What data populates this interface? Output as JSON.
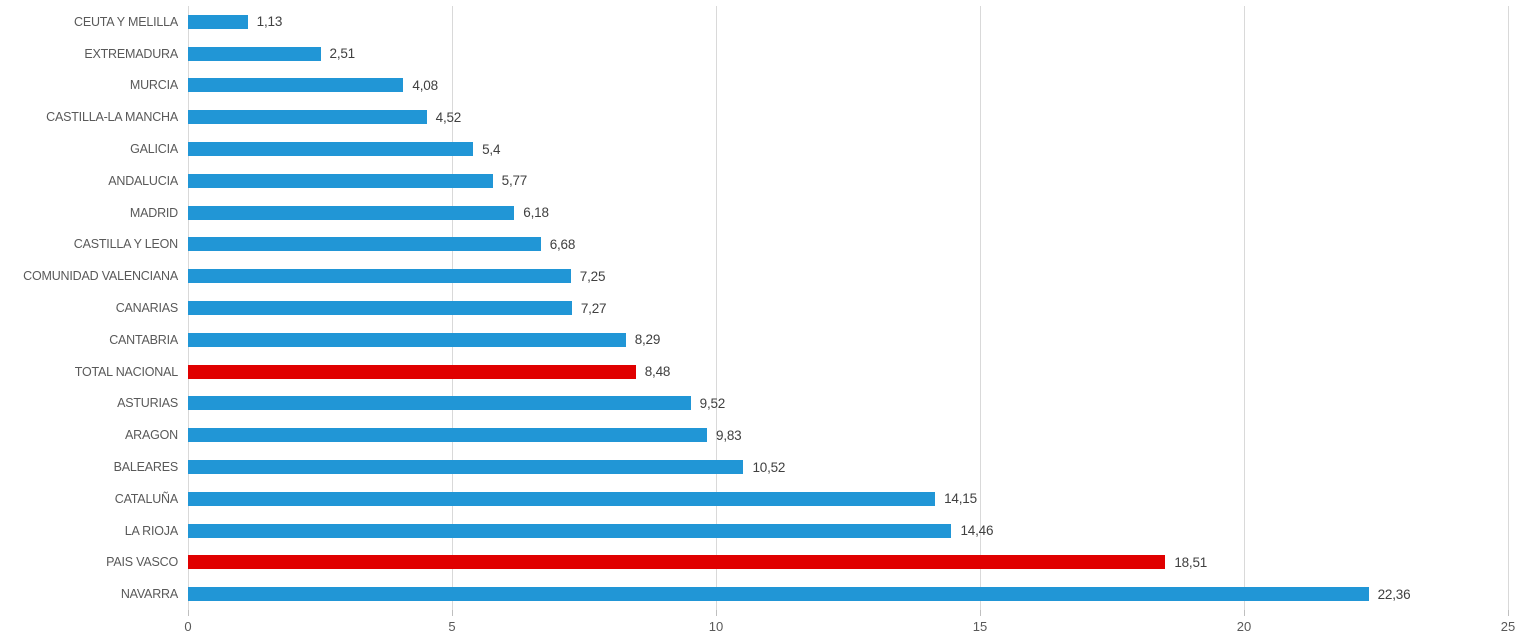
{
  "chart_data": {
    "type": "bar",
    "orientation": "horizontal",
    "title": "",
    "xlabel": "",
    "ylabel": "",
    "xlim": [
      0,
      25
    ],
    "xticks": [
      0,
      5,
      10,
      15,
      20,
      25
    ],
    "grid": "vertical",
    "legend": "none",
    "decimal_separator": "comma",
    "items": [
      {
        "label": "CEUTA Y MELILLA",
        "value": 1.13,
        "display": "1,13",
        "highlight": false
      },
      {
        "label": "EXTREMADURA",
        "value": 2.51,
        "display": "2,51",
        "highlight": false
      },
      {
        "label": "MURCIA",
        "value": 4.08,
        "display": "4,08",
        "highlight": false
      },
      {
        "label": "CASTILLA-LA MANCHA",
        "value": 4.52,
        "display": "4,52",
        "highlight": false
      },
      {
        "label": "GALICIA",
        "value": 5.4,
        "display": "5,4",
        "highlight": false
      },
      {
        "label": "ANDALUCIA",
        "value": 5.77,
        "display": "5,77",
        "highlight": false
      },
      {
        "label": "MADRID",
        "value": 6.18,
        "display": "6,18",
        "highlight": false
      },
      {
        "label": "CASTILLA Y LEON",
        "value": 6.68,
        "display": "6,68",
        "highlight": false
      },
      {
        "label": "COMUNIDAD VALENCIANA",
        "value": 7.25,
        "display": "7,25",
        "highlight": false
      },
      {
        "label": "CANARIAS",
        "value": 7.27,
        "display": "7,27",
        "highlight": false
      },
      {
        "label": "CANTABRIA",
        "value": 8.29,
        "display": "8,29",
        "highlight": false
      },
      {
        "label": "TOTAL NACIONAL",
        "value": 8.48,
        "display": "8,48",
        "highlight": true
      },
      {
        "label": "ASTURIAS",
        "value": 9.52,
        "display": "9,52",
        "highlight": false
      },
      {
        "label": "ARAGON",
        "value": 9.83,
        "display": "9,83",
        "highlight": false
      },
      {
        "label": "BALEARES",
        "value": 10.52,
        "display": "10,52",
        "highlight": false
      },
      {
        "label": "CATALUÑA",
        "value": 14.15,
        "display": "14,15",
        "highlight": false
      },
      {
        "label": "LA RIOJA",
        "value": 14.46,
        "display": "14,46",
        "highlight": false
      },
      {
        "label": "PAIS VASCO",
        "value": 18.51,
        "display": "18,51",
        "highlight": true
      },
      {
        "label": "NAVARRA",
        "value": 22.36,
        "display": "22,36",
        "highlight": false
      }
    ],
    "colors": {
      "bar_default": "#2196d6",
      "bar_highlight": "#e00000",
      "gridline": "#d9d9d9",
      "tick_mark": "#bfbfbf",
      "axis_text": "#595959",
      "value_text": "#404040",
      "background": "#ffffff"
    }
  }
}
